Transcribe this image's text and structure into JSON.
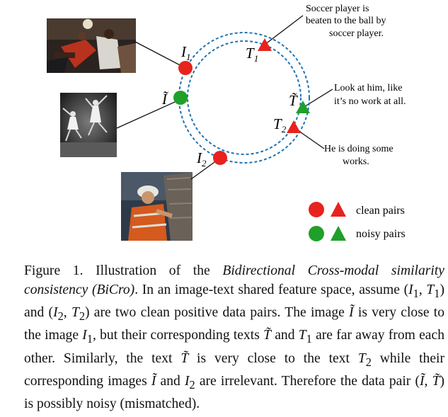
{
  "figure": {
    "labels": {
      "I1": "I",
      "I1_sub": "1",
      "I_tilde": "Ĩ",
      "I2": "I",
      "I2_sub": "2",
      "T1": "T",
      "T1_sub": "1",
      "T_tilde": "T̃",
      "T2": "T",
      "T2_sub": "2"
    },
    "captions_text": {
      "T1_line1": "Soccer player is",
      "T1_line2": "beaten to the ball by",
      "T1_line3": "soccer player.",
      "Ttilde_line1": "Look at him, like",
      "Ttilde_line2": "it’s no work at all.",
      "T2_line1": "He is doing some",
      "T2_line2": "works."
    },
    "legend": {
      "clean": "clean pairs",
      "noisy": "noisy pairs"
    },
    "colors": {
      "clean": "#e8231d",
      "noisy": "#1fa02a",
      "circle": "#1f74b4"
    }
  },
  "caption": {
    "prefix": "Figure 1. Illustration of the ",
    "title_italic": "Bidirectional Cross-modal similarity consistency (BiCro)",
    "part1": ". In an image-text shared feature space, assume (",
    "I1": "I",
    "sub1": "1",
    "comma1": ", ",
    "T1": "T",
    "part2": ") and (",
    "part3": ") are two clean positive data pairs. The image ",
    "Itilde": "Ĩ",
    "part4": " is very close to the image ",
    "part5": ", but their corresponding texts ",
    "Ttilde": "T̃",
    "part6": " and ",
    "part7": " are far away from each other. Similarly, the text ",
    "part8": " is very close to the text ",
    "part9": " while their corresponding images ",
    "part10": " and ",
    "part11": " are irrelevant. Therefore the data pair (",
    "part12": ") is possibly noisy (mismatched).",
    "sub2": "2",
    "I2": "I",
    "T2": "T",
    "comma": ", "
  }
}
